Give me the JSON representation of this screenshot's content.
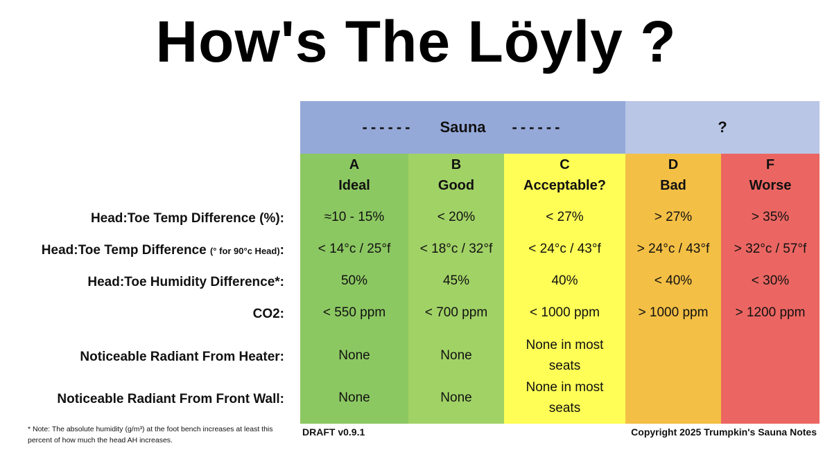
{
  "title": "How's The Löyly ?",
  "header": {
    "dashes_left": "------",
    "sauna_label": "Sauna",
    "dashes_right": "------",
    "unknown_label": "?"
  },
  "rows": [
    {
      "label": "Head:Toe Temp Difference (%):"
    },
    {
      "label_main": "Head:Toe Temp Difference",
      "label_note": "(° for 90°c Head)",
      "label_end": ":"
    },
    {
      "label": "Head:Toe Humidity Difference*:"
    },
    {
      "label": "CO2:"
    },
    {
      "label": "Noticeable Radiant From Heater:"
    },
    {
      "label": "Noticeable Radiant From Front Wall:"
    }
  ],
  "columns": [
    {
      "letter": "A",
      "grade": "Ideal",
      "values": [
        "≈10 - 15%",
        "< 14°c / 25°f",
        "50%",
        "< 550 ppm",
        "None",
        "None"
      ]
    },
    {
      "letter": "B",
      "grade": "Good",
      "values": [
        "< 20%",
        "< 18°c / 32°f",
        "45%",
        "< 700 ppm",
        "None",
        "None"
      ]
    },
    {
      "letter": "C",
      "grade": "Acceptable?",
      "values": [
        "< 27%",
        "< 24°c / 43°f",
        "40%",
        "< 1000 ppm",
        "None in most seats",
        "None in most seats"
      ]
    },
    {
      "letter": "D",
      "grade": "Bad",
      "values": [
        "> 27%",
        "> 24°c / 43°f",
        "< 40%",
        "> 1000 ppm",
        "",
        ""
      ]
    },
    {
      "letter": "F",
      "grade": "Worse",
      "values": [
        "> 35%",
        "> 32°c / 57°f",
        "< 30%",
        "> 1200 ppm",
        "",
        ""
      ]
    }
  ],
  "footnote": "* Note: The absolute humidity (g/m³) at the foot bench increases at least this percent of how much the head AH increases.",
  "draft": "DRAFT v0.9.1",
  "copyright": "Copyright 2025 Trumpkin's Sauna Notes",
  "colors": {
    "sauna_header": "#95a9d9",
    "unknown_header": "#b9c6e6",
    "A": "#8cc862",
    "B": "#a1d266",
    "C": "#fefe57",
    "D": "#f4bf45",
    "F": "#eb6662"
  }
}
